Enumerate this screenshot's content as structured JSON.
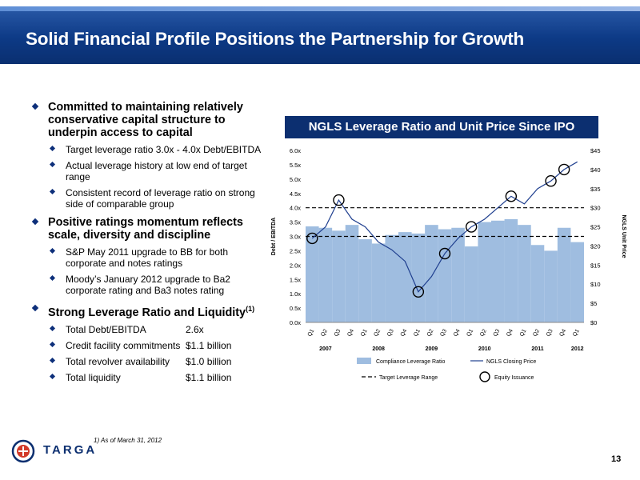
{
  "header": {
    "title": "Solid Financial Profile Positions the Partnership for Growth"
  },
  "bullets": [
    {
      "text": "Committed to maintaining relatively conservative capital structure to underpin access to capital",
      "subs": [
        "Target leverage ratio 3.0x - 4.0x Debt/EBITDA",
        "Actual leverage history at low end of target range",
        "Consistent record of leverage ratio on strong side of comparable group"
      ]
    },
    {
      "text": "Positive ratings momentum reflects scale, diversity and discipline",
      "subs": [
        "S&P May 2011 upgrade to BB for both corporate and notes ratings",
        "Moody’s January 2012 upgrade to Ba2 corporate rating and Ba3 notes rating"
      ]
    },
    {
      "text": "Strong Leverage Ratio and Liquidity",
      "sup": "(1)"
    }
  ],
  "financials": [
    {
      "label": "Total Debt/EBITDA",
      "value": "2.6x"
    },
    {
      "label": "Credit facility commitments",
      "value": "$1.1 billion"
    },
    {
      "label": "Total revolver availability",
      "value": "$1.0 billion"
    },
    {
      "label": "Total liquidity",
      "value": "$1.1 billion"
    }
  ],
  "footnote": "1)   As of March 31, 2012",
  "logo": {
    "text": "TARGA"
  },
  "page_number": "13",
  "colors": {
    "banner": "#0d3a86",
    "bar": "#9fbde0",
    "line": "#1f3f8f",
    "title_box": "#0c2f70"
  },
  "chart_data": {
    "type": "bar",
    "title": "NGLS Leverage Ratio and Unit Price Since IPO",
    "ylabel": "Debt / EBITDA",
    "y2label": "NGLS Unit Price",
    "ylim": [
      0,
      6
    ],
    "y2lim": [
      0,
      45
    ],
    "yticks": [
      "0.0x",
      "0.5x",
      "1.0x",
      "1.5x",
      "2.0x",
      "2.5x",
      "3.0x",
      "3.5x",
      "4.0x",
      "4.5x",
      "5.0x",
      "5.5x",
      "6.0x"
    ],
    "y2ticks": [
      "$0",
      "$5",
      "$10",
      "$15",
      "$20",
      "$25",
      "$30",
      "$35",
      "$40",
      "$45"
    ],
    "categories": [
      "Q1",
      "Q2",
      "Q3",
      "Q4",
      "Q1",
      "Q2",
      "Q3",
      "Q4",
      "Q1",
      "Q2",
      "Q3",
      "Q4",
      "Q1",
      "Q2",
      "Q3",
      "Q4",
      "Q1",
      "Q2",
      "Q3",
      "Q4",
      "Q1"
    ],
    "years": [
      "2007",
      "2008",
      "2009",
      "2010",
      "2011",
      "2012"
    ],
    "series": [
      {
        "name": "Compliance Leverage Ratio",
        "values": [
          3.35,
          3.3,
          3.2,
          3.4,
          2.9,
          2.75,
          3.05,
          3.15,
          3.1,
          3.4,
          3.25,
          3.3,
          2.65,
          3.5,
          3.55,
          3.6,
          3.4,
          2.7,
          2.5,
          3.3,
          2.8
        ]
      },
      {
        "name": "NGLS Closing Price",
        "values": [
          22,
          25,
          32,
          27,
          25,
          21,
          19,
          16,
          8,
          12,
          18,
          22,
          25,
          27,
          30,
          33,
          31,
          35,
          37,
          40,
          42
        ]
      }
    ],
    "target_range": [
      3.0,
      4.0
    ],
    "equity_issuance_quarters": [
      0,
      2,
      8,
      10,
      12,
      15,
      18,
      19
    ],
    "legend": [
      "Compliance Leverage Ratio",
      "NGLS Closing Price",
      "Target Leverage Range",
      "Equity Issuance"
    ]
  }
}
